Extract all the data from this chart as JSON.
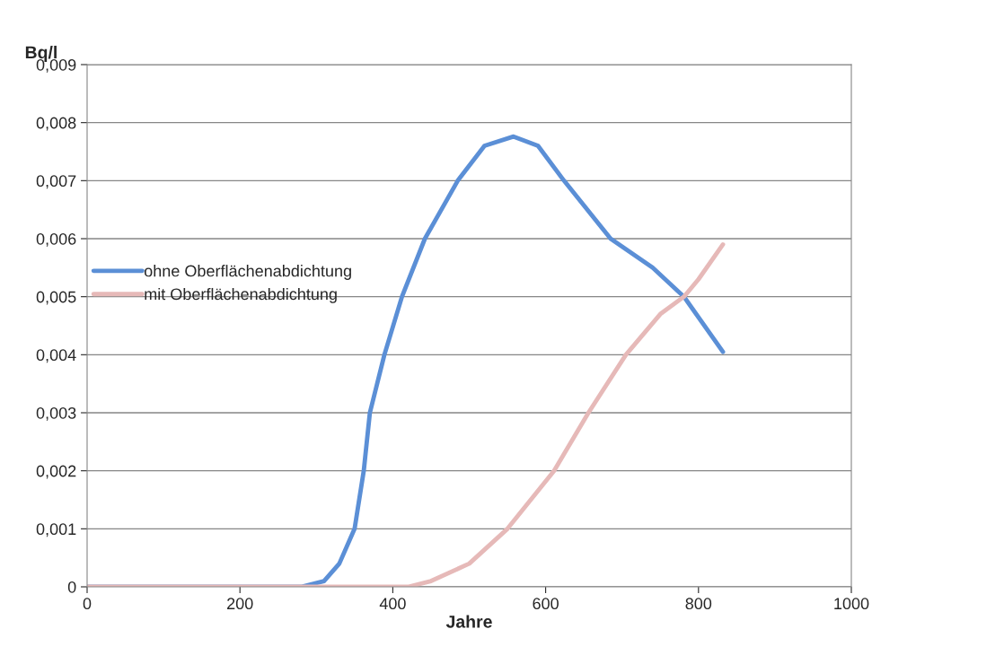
{
  "chart_data": {
    "type": "line",
    "xlabel": "Jahre",
    "ylabel": "Bq/l",
    "xlim": [
      0,
      1000
    ],
    "xticks": [
      0,
      200,
      400,
      600,
      800,
      1000
    ],
    "ylim": [
      0,
      0.009
    ],
    "yticks": [
      0,
      {
        "value": 0.001,
        "label": "0,001"
      },
      {
        "value": 0.002,
        "label": "0,002"
      },
      {
        "value": 0.003,
        "label": "0,003"
      },
      {
        "value": 0.004,
        "label": "0,004"
      },
      {
        "value": 0.005,
        "label": "0,005"
      },
      {
        "value": 0.006,
        "label": "0,006"
      },
      {
        "value": 0.007,
        "label": "0,007"
      },
      {
        "value": 0.008,
        "label": "0,008"
      },
      {
        "value": 0.009,
        "label": "0,009"
      }
    ],
    "grid": "y",
    "legend": "left",
    "marker": "none",
    "line_style": "solid",
    "series": [
      {
        "name": "ohne Oberflächenabdichtung",
        "color": "#5b8fd6",
        "x": [
          0,
          280,
          310,
          330,
          350,
          362,
          370,
          389,
          412,
          442,
          485,
          520,
          558,
          590,
          624,
          685,
          740,
          781,
          832
        ],
        "values": [
          0,
          0,
          0.0001,
          0.0004,
          0.001,
          0.002,
          0.003,
          0.004,
          0.005,
          0.006,
          0.007,
          0.0076,
          0.00776,
          0.0076,
          0.007,
          0.006,
          0.0055,
          0.005,
          0.00405
        ]
      },
      {
        "name": "mit Oberflächenabdichtung",
        "color": "#e6b9b8",
        "x": [
          0,
          420,
          450,
          500,
          550,
          611,
          656,
          705,
          750,
          781,
          800,
          832
        ],
        "values": [
          0,
          0,
          0.0001,
          0.0004,
          0.001,
          0.002,
          0.003,
          0.004,
          0.0047,
          0.005,
          0.0053,
          0.0059
        ]
      }
    ]
  }
}
